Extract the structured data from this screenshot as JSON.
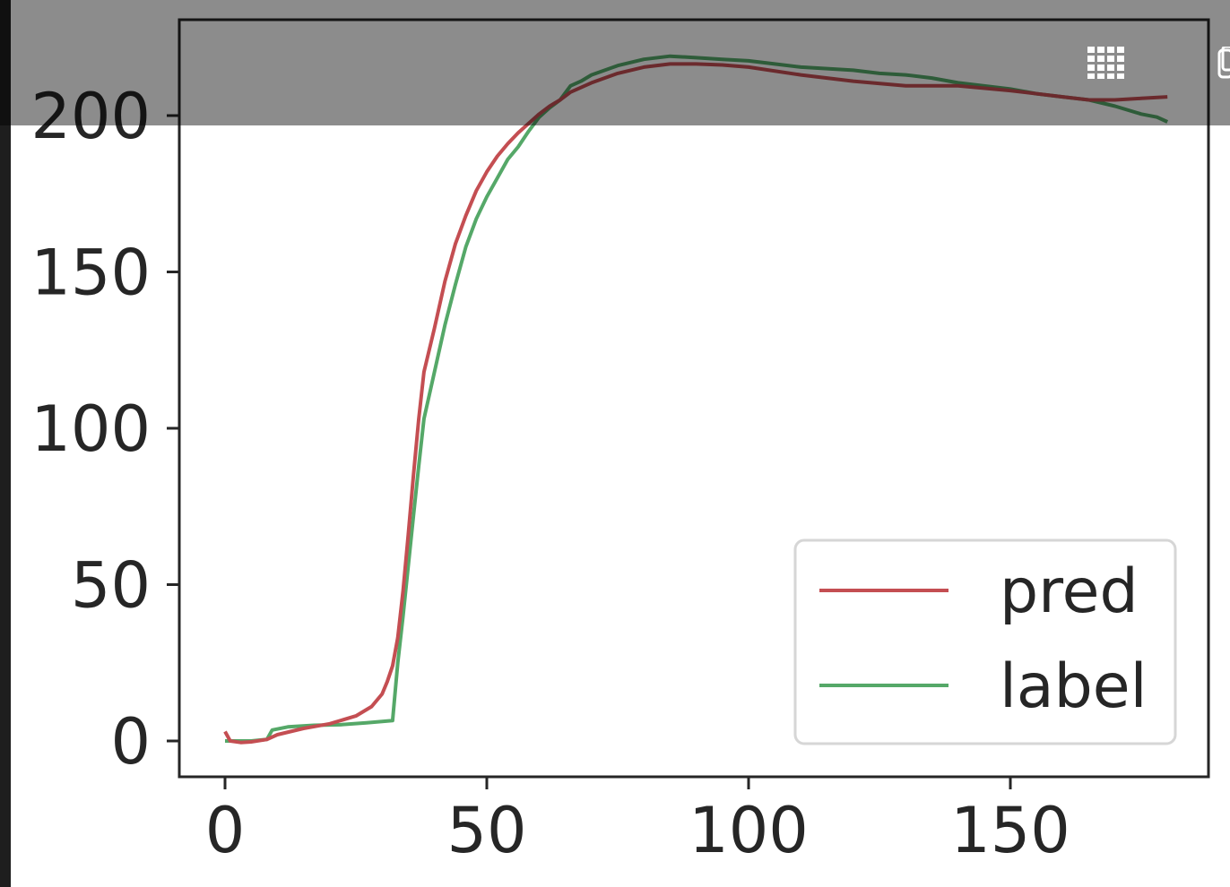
{
  "chart_data": {
    "type": "line",
    "xlim": [
      -9,
      188
    ],
    "ylim": [
      -12,
      230
    ],
    "x_ticks": [
      0,
      50,
      100,
      150
    ],
    "y_ticks": [
      0,
      50,
      100,
      150,
      200
    ],
    "x_tick_labels": [
      "0",
      "50",
      "100",
      "150"
    ],
    "y_tick_labels": [
      "0",
      "50",
      "100",
      "150",
      "200"
    ],
    "grid": false,
    "legend_position": "lower-right",
    "title": "",
    "xlabel": "",
    "ylabel": "",
    "series": [
      {
        "name": "pred",
        "color": "#c44e52",
        "points": [
          [
            0,
            3
          ],
          [
            1,
            0
          ],
          [
            3,
            -0.5
          ],
          [
            5,
            -0.3
          ],
          [
            8,
            0.5
          ],
          [
            10,
            2
          ],
          [
            15,
            4
          ],
          [
            20,
            5.5
          ],
          [
            25,
            8
          ],
          [
            28,
            11
          ],
          [
            30,
            15
          ],
          [
            31,
            19
          ],
          [
            32,
            24
          ],
          [
            33,
            33
          ],
          [
            34,
            48
          ],
          [
            35,
            66
          ],
          [
            36,
            85
          ],
          [
            37,
            103
          ],
          [
            38,
            118
          ],
          [
            40,
            132
          ],
          [
            42,
            147
          ],
          [
            44,
            159
          ],
          [
            46,
            168
          ],
          [
            48,
            176
          ],
          [
            50,
            182
          ],
          [
            52,
            187
          ],
          [
            54,
            191
          ],
          [
            56,
            194.5
          ],
          [
            58,
            197.5
          ],
          [
            60,
            200.5
          ],
          [
            62,
            203
          ],
          [
            64,
            205
          ],
          [
            66,
            207.5
          ],
          [
            70,
            210.5
          ],
          [
            75,
            213.5
          ],
          [
            80,
            215.5
          ],
          [
            85,
            216.5
          ],
          [
            90,
            216.5
          ],
          [
            95,
            216.2
          ],
          [
            100,
            215.5
          ],
          [
            110,
            213
          ],
          [
            120,
            211
          ],
          [
            130,
            209.5
          ],
          [
            140,
            209.5
          ],
          [
            150,
            208
          ],
          [
            160,
            206
          ],
          [
            165,
            205
          ],
          [
            170,
            205
          ],
          [
            175,
            205.5
          ],
          [
            180,
            206
          ]
        ]
      },
      {
        "name": "label",
        "color": "#55a868",
        "points": [
          [
            0,
            0
          ],
          [
            2,
            0
          ],
          [
            5,
            0
          ],
          [
            8,
            0.5
          ],
          [
            9,
            3.5
          ],
          [
            12,
            4.5
          ],
          [
            17,
            5
          ],
          [
            22,
            5.2
          ],
          [
            27,
            5.8
          ],
          [
            32,
            6.5
          ],
          [
            33,
            25
          ],
          [
            34,
            40
          ],
          [
            35,
            56
          ],
          [
            36,
            72
          ],
          [
            37,
            88
          ],
          [
            38,
            103
          ],
          [
            40,
            118
          ],
          [
            42,
            133
          ],
          [
            44,
            146
          ],
          [
            46,
            158
          ],
          [
            48,
            167
          ],
          [
            50,
            174
          ],
          [
            52,
            180
          ],
          [
            54,
            186
          ],
          [
            56,
            190
          ],
          [
            58,
            195
          ],
          [
            60,
            199.5
          ],
          [
            62,
            202.5
          ],
          [
            64,
            205
          ],
          [
            66,
            209.5
          ],
          [
            68,
            211
          ],
          [
            70,
            213
          ],
          [
            75,
            216
          ],
          [
            80,
            218
          ],
          [
            85,
            219
          ],
          [
            90,
            218.5
          ],
          [
            95,
            218
          ],
          [
            100,
            217.5
          ],
          [
            105,
            216.5
          ],
          [
            110,
            215.5
          ],
          [
            115,
            215
          ],
          [
            120,
            214.5
          ],
          [
            125,
            213.5
          ],
          [
            130,
            213
          ],
          [
            135,
            212
          ],
          [
            140,
            210.5
          ],
          [
            145,
            209.5
          ],
          [
            150,
            208.5
          ],
          [
            155,
            207
          ],
          [
            160,
            206
          ],
          [
            165,
            205
          ],
          [
            170,
            203
          ],
          [
            175,
            200.5
          ],
          [
            178,
            199.5
          ],
          [
            180,
            198
          ]
        ]
      }
    ]
  }
}
